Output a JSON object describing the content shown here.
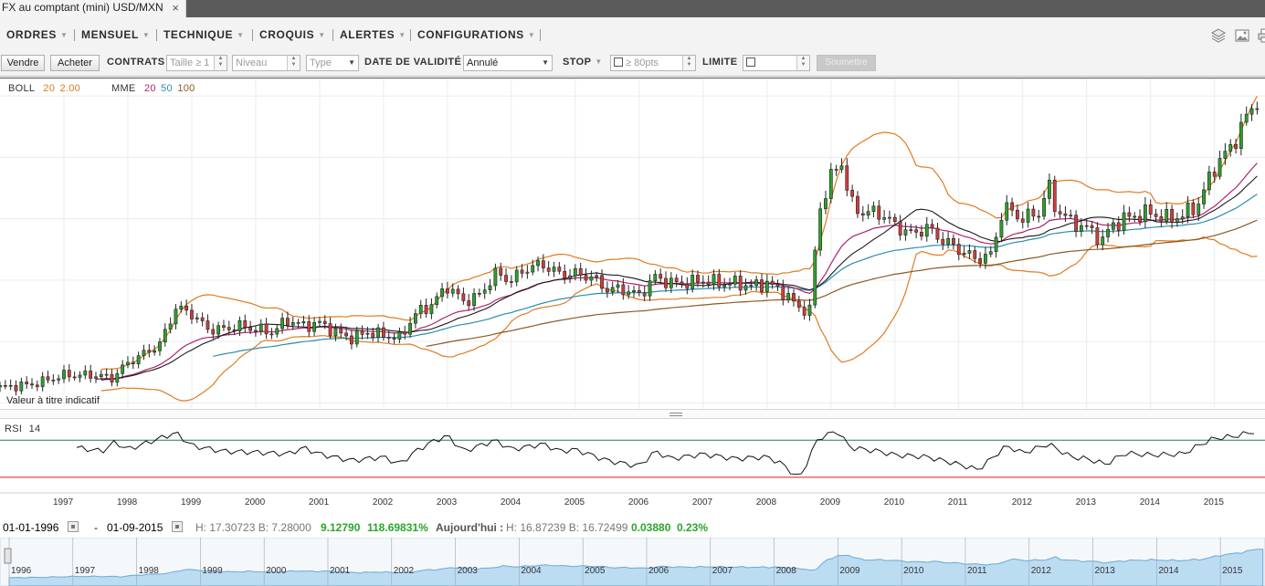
{
  "tab": {
    "title": "FX au comptant (mini) USD/MXN",
    "close": "×"
  },
  "menu": {
    "items": [
      "ORDRES",
      "MENSUEL",
      "TECHNIQUE",
      "CROQUIS",
      "ALERTES",
      "CONFIGURATIONS"
    ],
    "caret": "▼"
  },
  "order": {
    "sell": "Vendre",
    "buy": "Acheter",
    "contracts_label": "CONTRATS",
    "size_placeholder": "Taille ≥ 1",
    "level_placeholder": "Niveau",
    "type_placeholder": "Type",
    "validity_label": "DATE DE VALIDITÉ",
    "validity_value": "Annulé",
    "stop_label": "STOP",
    "stop_placeholder": "≥ 80pts",
    "limit_label": "LIMITE",
    "submit": "Soumettre"
  },
  "legend": {
    "boll_label": "BOLL",
    "boll_period": "20",
    "boll_dev": "2.00",
    "mme_label": "MME",
    "mme_20": "20",
    "mme_50": "50",
    "mme_100": "100",
    "rsi_label": "RSI",
    "rsi_period": "14"
  },
  "note": "Valeur à titre indicatif",
  "range": {
    "from": "01-01-1996",
    "sep": "-",
    "to": "01-09-2015",
    "hl": "H: 17.30723  B: 7.28000",
    "change": "9.12790",
    "change_pct": "118.69831%",
    "today_label": "Aujourd'hui :",
    "today_hl": "H: 16.87239  B: 16.72499",
    "today_change": "0.03880",
    "today_pct": "0.23%"
  },
  "colors": {
    "boll": "#e07b22",
    "mme20": "#b0236e",
    "mme50": "#2a8fae",
    "mme100": "#8a5a25",
    "up": "#2ea02e",
    "down": "#d23c3c",
    "rsi_upper": "#1f7a6e",
    "rsi_lower": "#d41f1f",
    "gain": "#2aa52a",
    "nav_fill": "#bcdcf2"
  },
  "chart_data": {
    "type": "candlestick",
    "instrument": "USD/MXN",
    "interval": "monthly",
    "x_ticks": [
      "1997",
      "1998",
      "1999",
      "2000",
      "2001",
      "2002",
      "2003",
      "2004",
      "2005",
      "2006",
      "2007",
      "2008",
      "2009",
      "2010",
      "2011",
      "2012",
      "2013",
      "2014",
      "2015"
    ],
    "nav_ticks": [
      "1996",
      "1997",
      "1998",
      "1999",
      "2000",
      "2001",
      "2002",
      "2003",
      "2004",
      "2005",
      "2006",
      "2007",
      "2008",
      "2009",
      "2010",
      "2011",
      "2012",
      "2013",
      "2014",
      "2015"
    ],
    "ylim": [
      6.8,
      17.6
    ],
    "x_range": [
      1996.0,
      2015.67
    ],
    "close_path": [
      [
        1996.0,
        7.5
      ],
      [
        1996.5,
        7.6
      ],
      [
        1997.0,
        7.9
      ],
      [
        1997.5,
        7.9
      ],
      [
        1997.75,
        7.8
      ],
      [
        1998.0,
        8.3
      ],
      [
        1998.5,
        8.9
      ],
      [
        1998.75,
        10.1
      ],
      [
        1999.0,
        9.9
      ],
      [
        1999.25,
        9.4
      ],
      [
        1999.5,
        9.4
      ],
      [
        1999.75,
        9.5
      ],
      [
        2000.0,
        9.4
      ],
      [
        2000.25,
        9.3
      ],
      [
        2000.5,
        9.7
      ],
      [
        2000.75,
        9.5
      ],
      [
        2001.0,
        9.6
      ],
      [
        2001.25,
        9.3
      ],
      [
        2001.5,
        9.1
      ],
      [
        2001.75,
        9.3
      ],
      [
        2002.0,
        9.2
      ],
      [
        2002.25,
        9.1
      ],
      [
        2002.5,
        9.9
      ],
      [
        2002.75,
        10.2
      ],
      [
        2003.0,
        10.8
      ],
      [
        2003.25,
        10.3
      ],
      [
        2003.5,
        10.5
      ],
      [
        2003.75,
        11.2
      ],
      [
        2004.0,
        11.0
      ],
      [
        2004.25,
        11.4
      ],
      [
        2004.5,
        11.5
      ],
      [
        2004.75,
        11.2
      ],
      [
        2005.0,
        11.2
      ],
      [
        2005.25,
        11.1
      ],
      [
        2005.5,
        10.7
      ],
      [
        2005.75,
        10.7
      ],
      [
        2006.0,
        10.5
      ],
      [
        2006.25,
        11.1
      ],
      [
        2006.5,
        10.9
      ],
      [
        2006.75,
        10.9
      ],
      [
        2007.0,
        11.0
      ],
      [
        2007.25,
        10.9
      ],
      [
        2007.5,
        10.9
      ],
      [
        2007.75,
        10.8
      ],
      [
        2008.0,
        10.9
      ],
      [
        2008.25,
        10.6
      ],
      [
        2008.5,
        10.1
      ],
      [
        2008.67,
        10.0
      ],
      [
        2008.8,
        13.2
      ],
      [
        2009.0,
        14.3
      ],
      [
        2009.15,
        15.0
      ],
      [
        2009.3,
        13.5
      ],
      [
        2009.5,
        13.2
      ],
      [
        2009.75,
        13.2
      ],
      [
        2010.0,
        12.8
      ],
      [
        2010.25,
        12.5
      ],
      [
        2010.5,
        12.7
      ],
      [
        2010.75,
        12.3
      ],
      [
        2011.0,
        12.0
      ],
      [
        2011.25,
        11.7
      ],
      [
        2011.5,
        11.8
      ],
      [
        2011.7,
        13.4
      ],
      [
        2012.0,
        13.0
      ],
      [
        2012.25,
        13.2
      ],
      [
        2012.4,
        14.1
      ],
      [
        2012.5,
        13.4
      ],
      [
        2012.75,
        12.9
      ],
      [
        2013.0,
        12.7
      ],
      [
        2013.25,
        12.3
      ],
      [
        2013.4,
        12.8
      ],
      [
        2013.6,
        13.0
      ],
      [
        2013.75,
        13.1
      ],
      [
        2014.0,
        13.2
      ],
      [
        2014.25,
        13.0
      ],
      [
        2014.5,
        13.1
      ],
      [
        2014.75,
        13.5
      ],
      [
        2015.0,
        14.7
      ],
      [
        2015.25,
        15.3
      ],
      [
        2015.5,
        16.3
      ],
      [
        2015.67,
        16.9
      ]
    ],
    "bollinger": {
      "period": 20,
      "std_dev": 2.0
    },
    "ema_periods": [
      20,
      50,
      100
    ],
    "rsi": {
      "period": 14,
      "upper": 70,
      "lower": 30,
      "points": [
        [
          1997.2,
          62
        ],
        [
          1997.6,
          58
        ],
        [
          1997.8,
          68
        ],
        [
          1998.0,
          60
        ],
        [
          1998.5,
          72
        ],
        [
          1998.75,
          78
        ],
        [
          1999.0,
          64
        ],
        [
          1999.5,
          58
        ],
        [
          2000.0,
          57
        ],
        [
          2000.5,
          55
        ],
        [
          2000.75,
          62
        ],
        [
          2001.0,
          55
        ],
        [
          2001.5,
          48
        ],
        [
          2002.0,
          52
        ],
        [
          2002.25,
          44
        ],
        [
          2002.5,
          58
        ],
        [
          2002.75,
          68
        ],
        [
          2003.0,
          75
        ],
        [
          2003.25,
          58
        ],
        [
          2003.5,
          64
        ],
        [
          2003.75,
          70
        ],
        [
          2004.0,
          60
        ],
        [
          2004.5,
          66
        ],
        [
          2004.75,
          58
        ],
        [
          2005.0,
          60
        ],
        [
          2005.5,
          48
        ],
        [
          2006.0,
          42
        ],
        [
          2006.25,
          58
        ],
        [
          2006.5,
          50
        ],
        [
          2007.0,
          55
        ],
        [
          2007.5,
          50
        ],
        [
          2008.0,
          52
        ],
        [
          2008.25,
          44
        ],
        [
          2008.5,
          28
        ],
        [
          2008.8,
          72
        ],
        [
          2009.1,
          80
        ],
        [
          2009.3,
          62
        ],
        [
          2009.75,
          58
        ],
        [
          2010.0,
          54
        ],
        [
          2010.5,
          52
        ],
        [
          2011.0,
          44
        ],
        [
          2011.3,
          38
        ],
        [
          2011.75,
          64
        ],
        [
          2012.0,
          56
        ],
        [
          2012.4,
          66
        ],
        [
          2012.75,
          52
        ],
        [
          2013.0,
          50
        ],
        [
          2013.3,
          44
        ],
        [
          2013.6,
          56
        ],
        [
          2014.0,
          54
        ],
        [
          2014.5,
          55
        ],
        [
          2014.8,
          66
        ],
        [
          2015.0,
          72
        ],
        [
          2015.3,
          74
        ],
        [
          2015.67,
          80
        ]
      ]
    }
  }
}
